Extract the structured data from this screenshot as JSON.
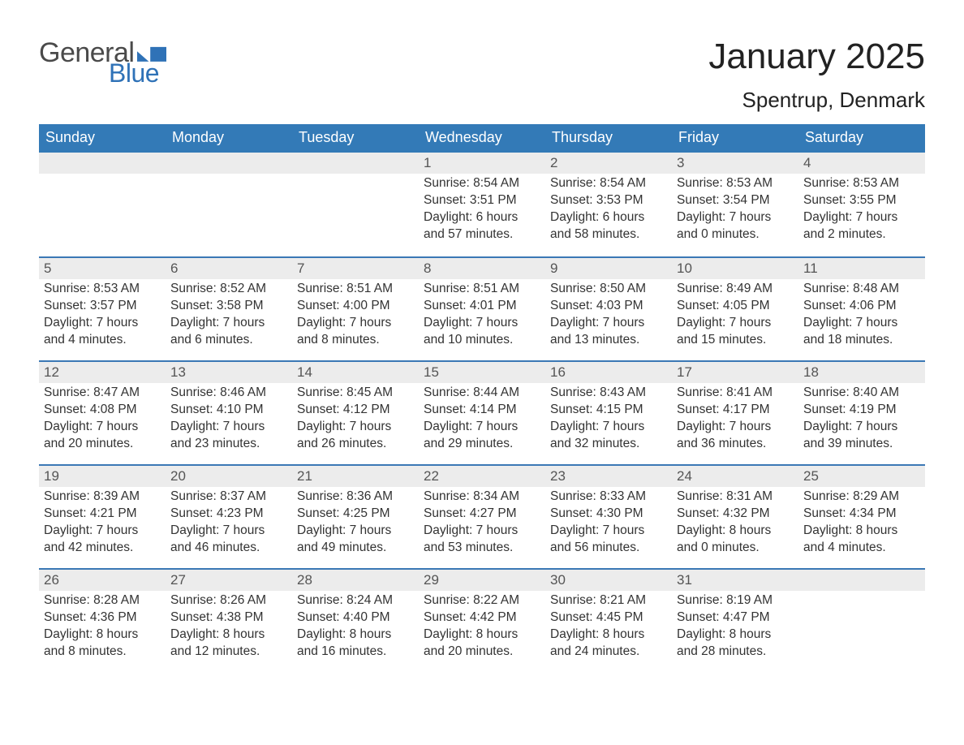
{
  "logo": {
    "text1": "General",
    "text2": "Blue"
  },
  "title": "January 2025",
  "location": "Spentrup, Denmark",
  "colors": {
    "brand_blue": "#2f72b7",
    "header_blue": "#337ab7",
    "row_sep_blue": "#3b78b5",
    "light_gray": "#ececec",
    "text": "#333333",
    "white": "#ffffff"
  },
  "weekdays": [
    "Sunday",
    "Monday",
    "Tuesday",
    "Wednesday",
    "Thursday",
    "Friday",
    "Saturday"
  ],
  "weeks": [
    [
      {
        "day": "",
        "sunrise": "",
        "sunset": "",
        "daylight": ""
      },
      {
        "day": "",
        "sunrise": "",
        "sunset": "",
        "daylight": ""
      },
      {
        "day": "",
        "sunrise": "",
        "sunset": "",
        "daylight": ""
      },
      {
        "day": "1",
        "sunrise": "Sunrise: 8:54 AM",
        "sunset": "Sunset: 3:51 PM",
        "daylight": "Daylight: 6 hours and 57 minutes."
      },
      {
        "day": "2",
        "sunrise": "Sunrise: 8:54 AM",
        "sunset": "Sunset: 3:53 PM",
        "daylight": "Daylight: 6 hours and 58 minutes."
      },
      {
        "day": "3",
        "sunrise": "Sunrise: 8:53 AM",
        "sunset": "Sunset: 3:54 PM",
        "daylight": "Daylight: 7 hours and 0 minutes."
      },
      {
        "day": "4",
        "sunrise": "Sunrise: 8:53 AM",
        "sunset": "Sunset: 3:55 PM",
        "daylight": "Daylight: 7 hours and 2 minutes."
      }
    ],
    [
      {
        "day": "5",
        "sunrise": "Sunrise: 8:53 AM",
        "sunset": "Sunset: 3:57 PM",
        "daylight": "Daylight: 7 hours and 4 minutes."
      },
      {
        "day": "6",
        "sunrise": "Sunrise: 8:52 AM",
        "sunset": "Sunset: 3:58 PM",
        "daylight": "Daylight: 7 hours and 6 minutes."
      },
      {
        "day": "7",
        "sunrise": "Sunrise: 8:51 AM",
        "sunset": "Sunset: 4:00 PM",
        "daylight": "Daylight: 7 hours and 8 minutes."
      },
      {
        "day": "8",
        "sunrise": "Sunrise: 8:51 AM",
        "sunset": "Sunset: 4:01 PM",
        "daylight": "Daylight: 7 hours and 10 minutes."
      },
      {
        "day": "9",
        "sunrise": "Sunrise: 8:50 AM",
        "sunset": "Sunset: 4:03 PM",
        "daylight": "Daylight: 7 hours and 13 minutes."
      },
      {
        "day": "10",
        "sunrise": "Sunrise: 8:49 AM",
        "sunset": "Sunset: 4:05 PM",
        "daylight": "Daylight: 7 hours and 15 minutes."
      },
      {
        "day": "11",
        "sunrise": "Sunrise: 8:48 AM",
        "sunset": "Sunset: 4:06 PM",
        "daylight": "Daylight: 7 hours and 18 minutes."
      }
    ],
    [
      {
        "day": "12",
        "sunrise": "Sunrise: 8:47 AM",
        "sunset": "Sunset: 4:08 PM",
        "daylight": "Daylight: 7 hours and 20 minutes."
      },
      {
        "day": "13",
        "sunrise": "Sunrise: 8:46 AM",
        "sunset": "Sunset: 4:10 PM",
        "daylight": "Daylight: 7 hours and 23 minutes."
      },
      {
        "day": "14",
        "sunrise": "Sunrise: 8:45 AM",
        "sunset": "Sunset: 4:12 PM",
        "daylight": "Daylight: 7 hours and 26 minutes."
      },
      {
        "day": "15",
        "sunrise": "Sunrise: 8:44 AM",
        "sunset": "Sunset: 4:14 PM",
        "daylight": "Daylight: 7 hours and 29 minutes."
      },
      {
        "day": "16",
        "sunrise": "Sunrise: 8:43 AM",
        "sunset": "Sunset: 4:15 PM",
        "daylight": "Daylight: 7 hours and 32 minutes."
      },
      {
        "day": "17",
        "sunrise": "Sunrise: 8:41 AM",
        "sunset": "Sunset: 4:17 PM",
        "daylight": "Daylight: 7 hours and 36 minutes."
      },
      {
        "day": "18",
        "sunrise": "Sunrise: 8:40 AM",
        "sunset": "Sunset: 4:19 PM",
        "daylight": "Daylight: 7 hours and 39 minutes."
      }
    ],
    [
      {
        "day": "19",
        "sunrise": "Sunrise: 8:39 AM",
        "sunset": "Sunset: 4:21 PM",
        "daylight": "Daylight: 7 hours and 42 minutes."
      },
      {
        "day": "20",
        "sunrise": "Sunrise: 8:37 AM",
        "sunset": "Sunset: 4:23 PM",
        "daylight": "Daylight: 7 hours and 46 minutes."
      },
      {
        "day": "21",
        "sunrise": "Sunrise: 8:36 AM",
        "sunset": "Sunset: 4:25 PM",
        "daylight": "Daylight: 7 hours and 49 minutes."
      },
      {
        "day": "22",
        "sunrise": "Sunrise: 8:34 AM",
        "sunset": "Sunset: 4:27 PM",
        "daylight": "Daylight: 7 hours and 53 minutes."
      },
      {
        "day": "23",
        "sunrise": "Sunrise: 8:33 AM",
        "sunset": "Sunset: 4:30 PM",
        "daylight": "Daylight: 7 hours and 56 minutes."
      },
      {
        "day": "24",
        "sunrise": "Sunrise: 8:31 AM",
        "sunset": "Sunset: 4:32 PM",
        "daylight": "Daylight: 8 hours and 0 minutes."
      },
      {
        "day": "25",
        "sunrise": "Sunrise: 8:29 AM",
        "sunset": "Sunset: 4:34 PM",
        "daylight": "Daylight: 8 hours and 4 minutes."
      }
    ],
    [
      {
        "day": "26",
        "sunrise": "Sunrise: 8:28 AM",
        "sunset": "Sunset: 4:36 PM",
        "daylight": "Daylight: 8 hours and 8 minutes."
      },
      {
        "day": "27",
        "sunrise": "Sunrise: 8:26 AM",
        "sunset": "Sunset: 4:38 PM",
        "daylight": "Daylight: 8 hours and 12 minutes."
      },
      {
        "day": "28",
        "sunrise": "Sunrise: 8:24 AM",
        "sunset": "Sunset: 4:40 PM",
        "daylight": "Daylight: 8 hours and 16 minutes."
      },
      {
        "day": "29",
        "sunrise": "Sunrise: 8:22 AM",
        "sunset": "Sunset: 4:42 PM",
        "daylight": "Daylight: 8 hours and 20 minutes."
      },
      {
        "day": "30",
        "sunrise": "Sunrise: 8:21 AM",
        "sunset": "Sunset: 4:45 PM",
        "daylight": "Daylight: 8 hours and 24 minutes."
      },
      {
        "day": "31",
        "sunrise": "Sunrise: 8:19 AM",
        "sunset": "Sunset: 4:47 PM",
        "daylight": "Daylight: 8 hours and 28 minutes."
      },
      {
        "day": "",
        "sunrise": "",
        "sunset": "",
        "daylight": ""
      }
    ]
  ]
}
